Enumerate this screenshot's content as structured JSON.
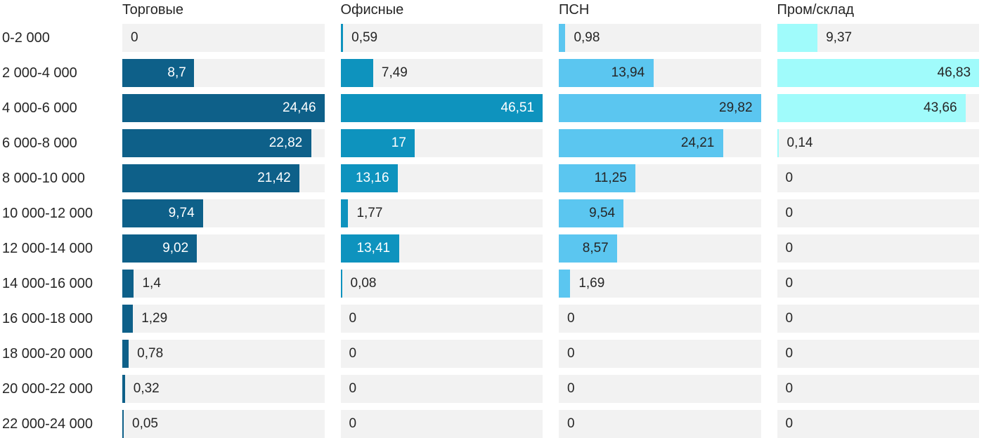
{
  "page": {
    "background": "#ffffff"
  },
  "chart_data": {
    "type": "bar",
    "orientation": "horizontal",
    "title": "",
    "xlabel": "",
    "ylabel": "",
    "grid": false,
    "legend_position": "column-headers-top",
    "scale": "per-column-max",
    "value_format": "comma-decimal",
    "track_color": "#f2f2f2",
    "text_color": "#262626",
    "categories": [
      "0-2 000",
      "2 000-4 000",
      "4 000-6 000",
      "6 000-8 000",
      "8 000-10 000",
      "10 000-12 000",
      "12 000-14 000",
      "14 000-16 000",
      "16 000-18 000",
      "18 000-20 000",
      "20 000-22 000",
      "22 000-24 000"
    ],
    "series": [
      {
        "name": "Торговые",
        "color": "#0e6089",
        "label_inside_color": "#ffffff",
        "values": [
          0,
          8.7,
          24.46,
          22.82,
          21.42,
          9.74,
          9.02,
          1.4,
          1.29,
          0.78,
          0.32,
          0.05
        ],
        "display": [
          "0",
          "8,7",
          "24,46",
          "22,82",
          "21,42",
          "9,74",
          "9,02",
          "1,4",
          "1,29",
          "0,78",
          "0,32",
          "0,05"
        ]
      },
      {
        "name": "Офисные",
        "color": "#0e93be",
        "label_inside_color": "#ffffff",
        "values": [
          0.59,
          7.49,
          46.51,
          17,
          13.16,
          1.77,
          13.41,
          0.08,
          0,
          0,
          0,
          0
        ],
        "display": [
          "0,59",
          "7,49",
          "46,51",
          "17",
          "13,16",
          "1,77",
          "13,41",
          "0,08",
          "0",
          "0",
          "0",
          "0"
        ]
      },
      {
        "name": "ПСН",
        "color": "#5bc6f0",
        "label_inside_color": "#262626",
        "values": [
          0.98,
          13.94,
          29.82,
          24.21,
          11.25,
          9.54,
          8.57,
          1.69,
          0,
          0,
          0,
          0
        ],
        "display": [
          "0,98",
          "13,94",
          "29,82",
          "24,21",
          "11,25",
          "9,54",
          "8,57",
          "1,69",
          "0",
          "0",
          "0",
          "0"
        ]
      },
      {
        "name": "Пром/склад",
        "color": "#a0fbfb",
        "label_inside_color": "#262626",
        "values": [
          9.37,
          46.83,
          43.66,
          0.14,
          0,
          0,
          0,
          0,
          0,
          0,
          0,
          0
        ],
        "display": [
          "9,37",
          "46,83",
          "43,66",
          "0,14",
          "0",
          "0",
          "0",
          "0",
          "0",
          "0",
          "0",
          "0"
        ]
      }
    ]
  }
}
